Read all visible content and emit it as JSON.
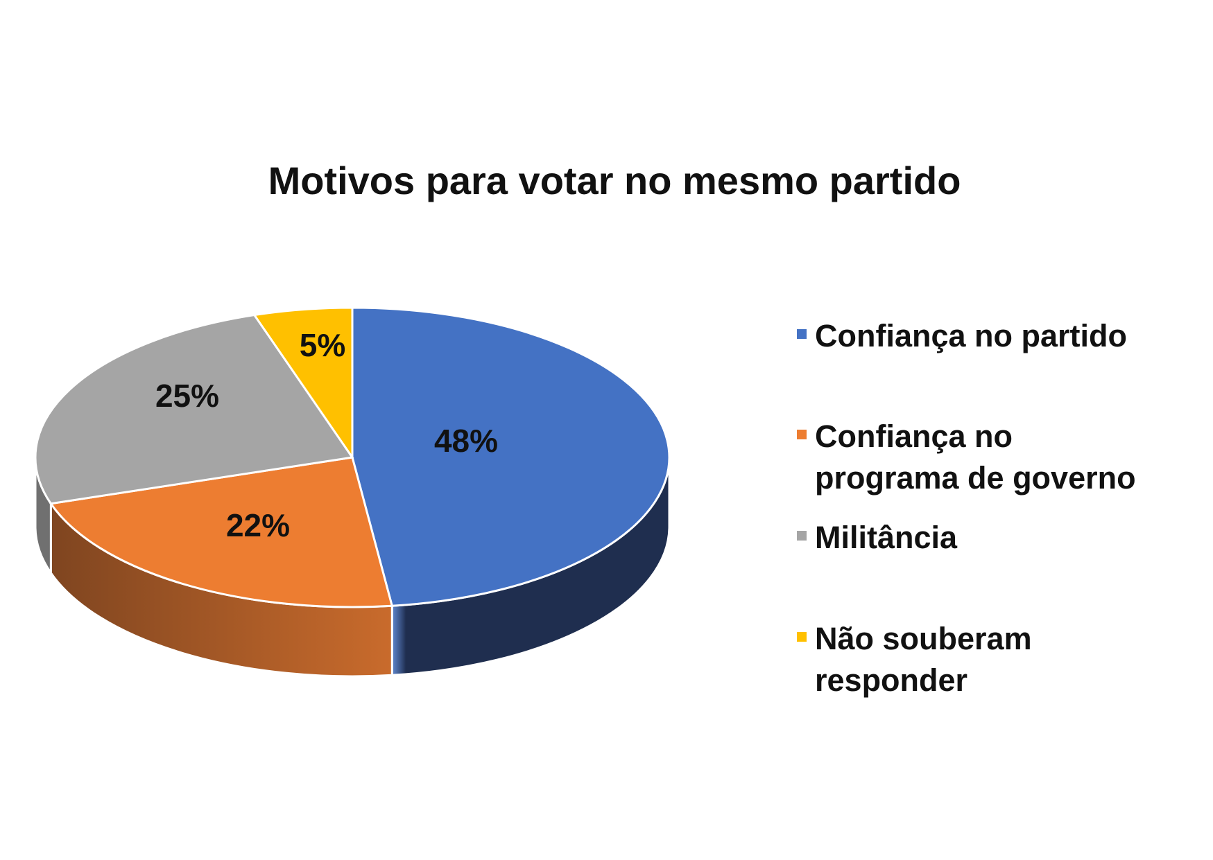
{
  "chart_data": {
    "type": "pie",
    "title": "Motivos para votar no mesmo partido",
    "three_d": true,
    "legend_position": "right",
    "slices": [
      {
        "label": "Confiança no partido",
        "value": 48,
        "display": "48%",
        "color": "#4472C4",
        "side_color": "#1F2E4F"
      },
      {
        "label": "Confiança no\nprograma de governo",
        "value": 22,
        "display": "22%",
        "color": "#ED7D31",
        "side_color": "#A85A24"
      },
      {
        "label": "Militância",
        "value": 25,
        "display": "25%",
        "color": "#A5A5A5",
        "side_color": "#707070"
      },
      {
        "label": "Não souberam\nresponder",
        "value": 5,
        "display": "5%",
        "color": "#FFC000",
        "side_color": "#B38600"
      }
    ]
  }
}
